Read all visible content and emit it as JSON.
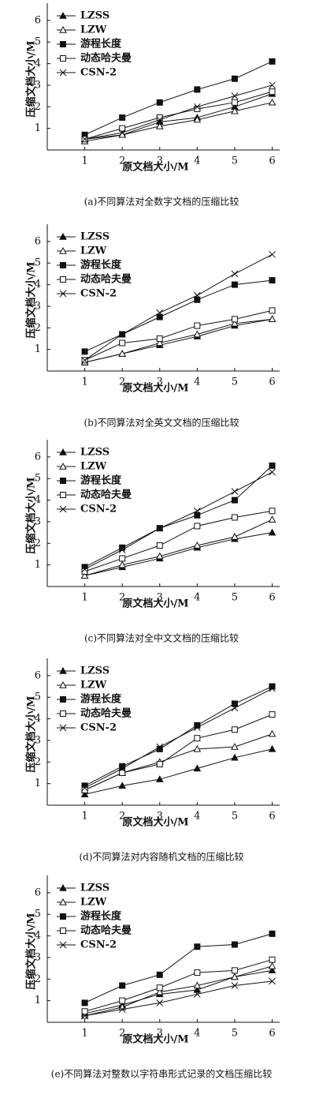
{
  "chart_data": [
    {
      "type": "line",
      "title": "(a)不同算法对全数字文档的压缩比较",
      "x_label": "原文档大小/M",
      "y_label": "压缩文档大小/M",
      "x": [
        1,
        2,
        3,
        4,
        5,
        6
      ],
      "xlim": [
        0,
        6.2
      ],
      "xticks": [
        1,
        2,
        3,
        4,
        5,
        6
      ],
      "ylim": [
        0,
        6.8
      ],
      "yticks": [
        1,
        2,
        3,
        4,
        5,
        6
      ],
      "series": [
        {
          "name": "LZSS",
          "color": "#111111",
          "marker": "triangle-filled",
          "values": [
            0.5,
            0.7,
            1.3,
            1.5,
            2.0,
            2.6
          ]
        },
        {
          "name": "LZW",
          "color": "#111111",
          "marker": "triangle-open",
          "values": [
            0.4,
            0.7,
            1.1,
            1.4,
            1.8,
            2.2
          ]
        },
        {
          "name": "游程长度",
          "color": "#111111",
          "marker": "square-filled",
          "values": [
            0.7,
            1.5,
            2.2,
            2.8,
            3.3,
            4.1
          ]
        },
        {
          "name": "动态哈夫曼",
          "color": "#111111",
          "marker": "square-open",
          "values": [
            0.5,
            1.0,
            1.5,
            1.9,
            2.2,
            2.7
          ]
        },
        {
          "name": "CSN-2",
          "color": "#111111",
          "marker": "x",
          "values": [
            0.5,
            0.8,
            1.4,
            2.0,
            2.5,
            3.0
          ]
        }
      ]
    },
    {
      "type": "line",
      "title": "(b)不同算法对全英文文档的压缩比较",
      "x_label": "原文档大小/M",
      "y_label": "压缩文档大小/M",
      "x": [
        1,
        2,
        3,
        4,
        5,
        6
      ],
      "xlim": [
        0,
        6.2
      ],
      "xticks": [
        1,
        2,
        3,
        4,
        5,
        6
      ],
      "ylim": [
        0,
        6.8
      ],
      "yticks": [
        1,
        2,
        3,
        4,
        5,
        6
      ],
      "series": [
        {
          "name": "LZSS",
          "color": "#111111",
          "marker": "triangle-filled",
          "values": [
            0.4,
            0.8,
            1.2,
            1.6,
            2.1,
            2.4
          ]
        },
        {
          "name": "LZW",
          "color": "#111111",
          "marker": "triangle-open",
          "values": [
            0.4,
            0.8,
            1.3,
            1.7,
            2.2,
            2.4
          ]
        },
        {
          "name": "游程长度",
          "color": "#111111",
          "marker": "square-filled",
          "values": [
            0.9,
            1.7,
            2.5,
            3.3,
            4.0,
            4.2
          ]
        },
        {
          "name": "动态哈夫曼",
          "color": "#111111",
          "marker": "square-open",
          "values": [
            0.5,
            1.3,
            1.5,
            2.1,
            2.4,
            2.8
          ]
        },
        {
          "name": "CSN-2",
          "color": "#111111",
          "marker": "x",
          "values": [
            0.5,
            1.7,
            2.7,
            3.5,
            4.5,
            5.4
          ]
        }
      ]
    },
    {
      "type": "line",
      "title": "(c)不同算法对全中文文档的压缩比较",
      "x_label": "原文档大小/M",
      "y_label": "压缩文档大小/M",
      "x": [
        1,
        2,
        3,
        4,
        5,
        6
      ],
      "xlim": [
        0,
        6.2
      ],
      "xticks": [
        1,
        2,
        3,
        4,
        5,
        6
      ],
      "ylim": [
        0,
        6.8
      ],
      "yticks": [
        1,
        2,
        3,
        4,
        5,
        6
      ],
      "series": [
        {
          "name": "LZSS",
          "color": "#111111",
          "marker": "triangle-filled",
          "values": [
            0.5,
            0.9,
            1.3,
            1.8,
            2.2,
            2.5
          ]
        },
        {
          "name": "LZW",
          "color": "#111111",
          "marker": "triangle-open",
          "values": [
            0.5,
            1.0,
            1.4,
            1.9,
            2.3,
            3.1
          ]
        },
        {
          "name": "游程长度",
          "color": "#111111",
          "marker": "square-filled",
          "values": [
            0.9,
            1.8,
            2.7,
            3.3,
            4.0,
            5.6
          ]
        },
        {
          "name": "动态哈夫曼",
          "color": "#111111",
          "marker": "square-open",
          "values": [
            0.7,
            1.3,
            1.9,
            2.8,
            3.2,
            3.5
          ]
        },
        {
          "name": "CSN-2",
          "color": "#111111",
          "marker": "x",
          "values": [
            0.8,
            1.7,
            2.7,
            3.5,
            4.4,
            5.3
          ]
        }
      ]
    },
    {
      "type": "line",
      "title": "(d)不同算法对内容随机文档的压缩比较",
      "x_label": "原文档大小/M",
      "y_label": "压缩文档大小/M",
      "x": [
        1,
        2,
        3,
        4,
        5,
        6
      ],
      "xlim": [
        0,
        6.2
      ],
      "xticks": [
        1,
        2,
        3,
        4,
        5,
        6
      ],
      "ylim": [
        0,
        6.8
      ],
      "yticks": [
        1,
        2,
        3,
        4,
        5,
        6
      ],
      "series": [
        {
          "name": "LZSS",
          "color": "#111111",
          "marker": "triangle-filled",
          "values": [
            0.5,
            0.9,
            1.2,
            1.7,
            2.2,
            2.6
          ]
        },
        {
          "name": "LZW",
          "color": "#111111",
          "marker": "triangle-open",
          "values": [
            0.7,
            1.5,
            2.0,
            2.6,
            2.7,
            3.3
          ]
        },
        {
          "name": "游程长度",
          "color": "#111111",
          "marker": "square-filled",
          "values": [
            0.9,
            1.8,
            2.6,
            3.7,
            4.7,
            5.5
          ]
        },
        {
          "name": "动态哈夫曼",
          "color": "#111111",
          "marker": "square-open",
          "values": [
            0.7,
            1.5,
            1.9,
            3.1,
            3.5,
            4.2
          ]
        },
        {
          "name": "CSN-2",
          "color": "#111111",
          "marker": "x",
          "values": [
            0.8,
            1.7,
            2.7,
            3.6,
            4.5,
            5.4
          ]
        }
      ]
    },
    {
      "type": "line",
      "title": "(e)不同算法对整数以字符串形式记录的文档压缩比较",
      "x_label": "原文档大小/M",
      "y_label": "压缩文档大小/M",
      "x": [
        1,
        2,
        3,
        4,
        5,
        6
      ],
      "xlim": [
        0,
        6.2
      ],
      "xticks": [
        1,
        2,
        3,
        4,
        5,
        6
      ],
      "ylim": [
        0,
        6.8
      ],
      "yticks": [
        1,
        2,
        3,
        4,
        5,
        6
      ],
      "series": [
        {
          "name": "LZSS",
          "color": "#111111",
          "marker": "triangle-filled",
          "values": [
            0.4,
            0.8,
            1.3,
            1.5,
            2.1,
            2.4
          ]
        },
        {
          "name": "LZW",
          "color": "#111111",
          "marker": "triangle-open",
          "values": [
            0.3,
            0.7,
            1.4,
            1.7,
            2.1,
            2.6
          ]
        },
        {
          "name": "游程长度",
          "color": "#111111",
          "marker": "square-filled",
          "values": [
            0.9,
            1.7,
            2.2,
            3.5,
            3.6,
            4.1
          ]
        },
        {
          "name": "动态哈夫曼",
          "color": "#111111",
          "marker": "square-open",
          "values": [
            0.5,
            1.0,
            1.6,
            2.3,
            2.4,
            2.9
          ]
        },
        {
          "name": "CSN-2",
          "color": "#111111",
          "marker": "x",
          "values": [
            0.3,
            0.6,
            0.9,
            1.3,
            1.7,
            1.9
          ]
        }
      ]
    }
  ]
}
